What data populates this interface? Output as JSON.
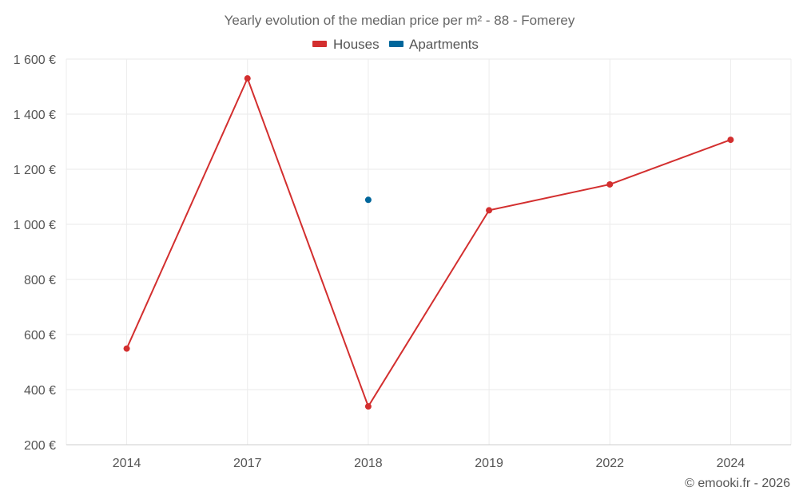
{
  "chart_data": {
    "type": "line",
    "title": "Yearly evolution of the median price per m² - 88 - Fomerey",
    "categories": [
      "2014",
      "2017",
      "2018",
      "2019",
      "2022",
      "2024"
    ],
    "series": [
      {
        "name": "Houses",
        "color": "#d32f2f",
        "values": [
          549,
          1530,
          339,
          1051,
          1145,
          1307
        ]
      },
      {
        "name": "Apartments",
        "color": "#00669b",
        "values": [
          null,
          null,
          1089,
          null,
          null,
          null
        ]
      }
    ],
    "y_ticks": [
      200,
      400,
      600,
      800,
      1000,
      1200,
      1400,
      1600
    ],
    "y_tick_labels": [
      "200 €",
      "400 €",
      "600 €",
      "800 €",
      "1 000 €",
      "1 200 €",
      "1 400 €",
      "1 600 €"
    ],
    "ylim": [
      200,
      1600
    ],
    "xlabel": "",
    "ylabel": "",
    "legend_position": "top-center",
    "grid": true
  },
  "credit": "© emooki.fr - 2026"
}
